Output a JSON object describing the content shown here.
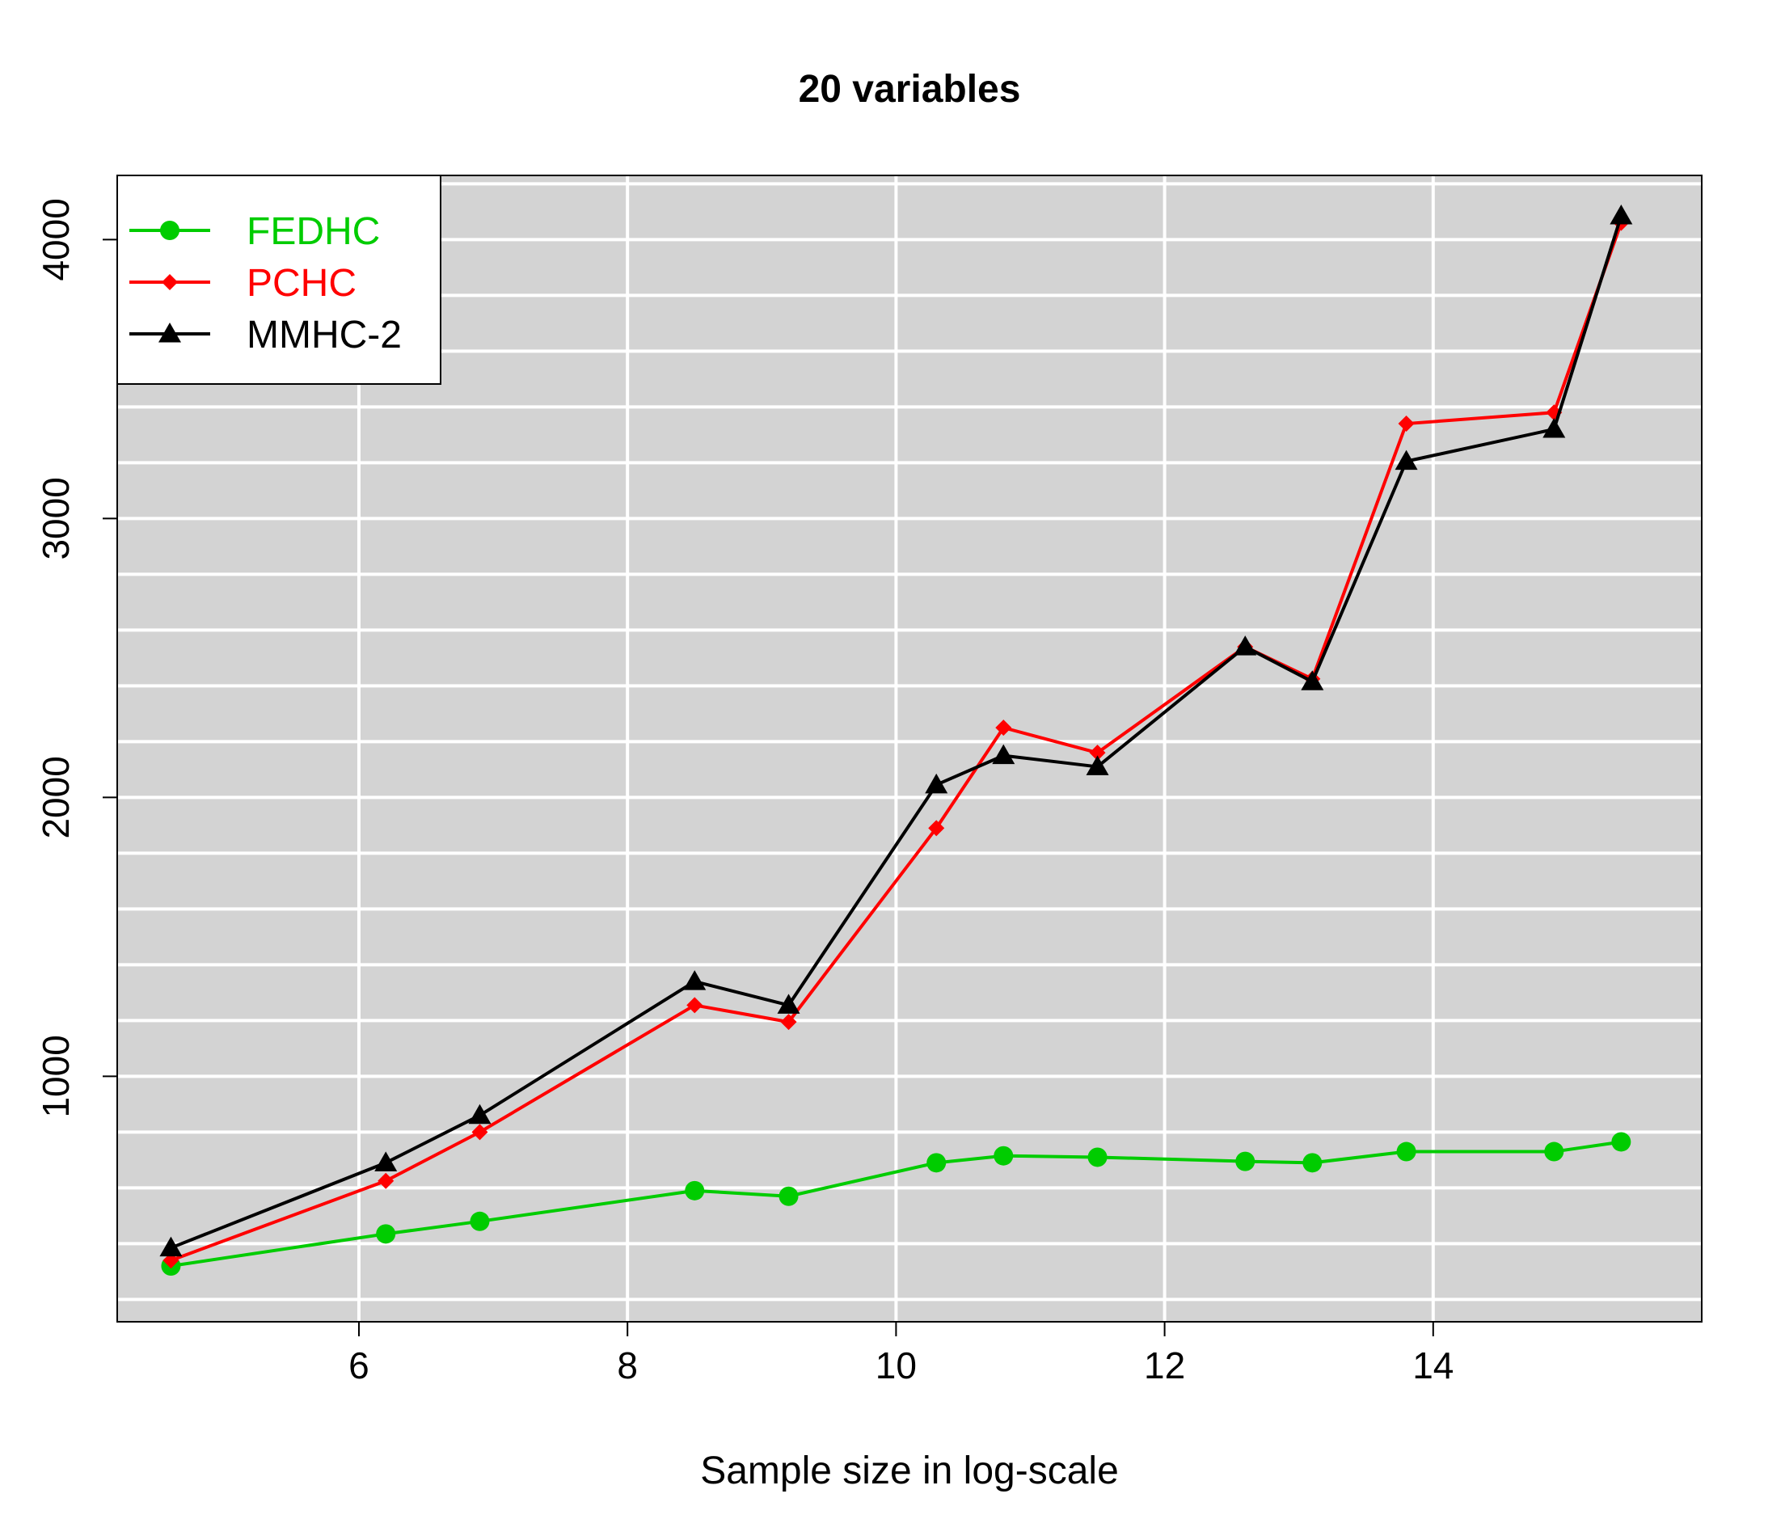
{
  "chart_data": {
    "type": "line",
    "title": "20 variables",
    "xlabel": "Sample size in log-scale",
    "ylabel": "",
    "xlim": [
      4.2,
      16.0
    ],
    "ylim": [
      120,
      4230
    ],
    "x_ticks": [
      "6",
      "8",
      "10",
      "12",
      "14"
    ],
    "y_ticks": [
      "1000",
      "2000",
      "3000",
      "4000"
    ],
    "grid": true,
    "legend_position": "top-left",
    "background_color": "#d3d3d3",
    "x": [
      4.6,
      6.2,
      6.9,
      8.5,
      9.2,
      10.3,
      10.8,
      11.5,
      12.6,
      13.1,
      13.8,
      14.9,
      15.4
    ],
    "series": [
      {
        "name": "FEDHC",
        "color": "#00cc00",
        "marker": "circle",
        "values": [
          320,
          435,
          480,
          590,
          570,
          690,
          715,
          710,
          695,
          690,
          730,
          730,
          765
        ]
      },
      {
        "name": "PCHC",
        "color": "#ff0000",
        "marker": "diamond",
        "values": [
          340,
          625,
          800,
          1255,
          1195,
          1890,
          2250,
          2160,
          2540,
          2425,
          3340,
          3380,
          4060
        ]
      },
      {
        "name": "MMHC-2",
        "color": "#000000",
        "marker": "triangle",
        "values": [
          385,
          690,
          860,
          1340,
          1255,
          2045,
          2150,
          2110,
          2540,
          2415,
          3205,
          3320,
          4085
        ]
      }
    ]
  }
}
